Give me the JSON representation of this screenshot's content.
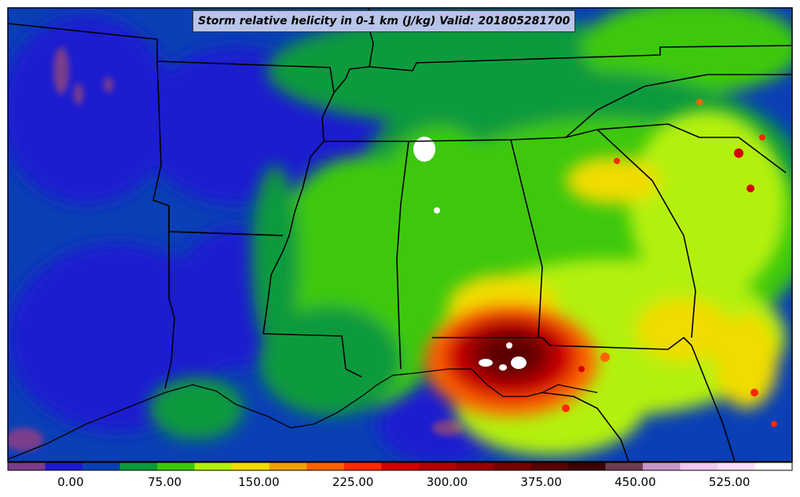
{
  "title": "Storm relative helicity in 0-1 km (J/kg) Valid: 201805281700",
  "colorbar": {
    "colors": [
      "#7a3c8c",
      "#1a1ad0",
      "#0a3fb5",
      "#0a9a3c",
      "#3cc80a",
      "#b4f00a",
      "#f0dc00",
      "#f0a000",
      "#ff6400",
      "#ff2800",
      "#d20000",
      "#b40000",
      "#960000",
      "#780000",
      "#5a0000",
      "#3c0000",
      "#6e3c50",
      "#c896c8",
      "#f0c8f0",
      "#ffdcff",
      "#ffffff"
    ],
    "tick_labels": [
      "0.00",
      "75.00",
      "150.00",
      "225.00",
      "300.00",
      "375.00",
      "450.00",
      "525.00"
    ],
    "tick_values": [
      0,
      75,
      150,
      225,
      300,
      375,
      450,
      525
    ],
    "min": -50,
    "max": 575
  },
  "palette": {
    "background_blue": "#0a3fb5",
    "deep_blue": "#1a1ad0",
    "green": "#3cc80a",
    "dark_green": "#0a9a3c",
    "yellow_green": "#b4f00a",
    "yellow": "#f0dc00",
    "orange": "#ff6400",
    "red": "#d20000",
    "dark_red": "#780000",
    "purple": "#7a3c8c",
    "white": "#ffffff"
  }
}
